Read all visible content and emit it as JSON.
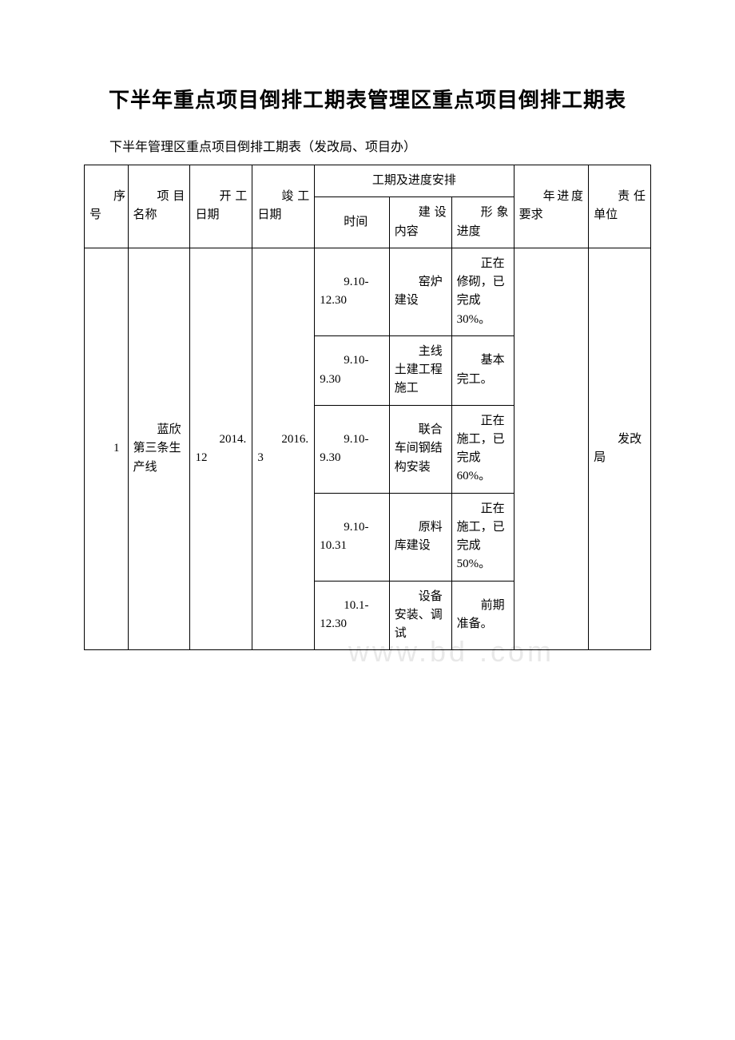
{
  "title": "下半年重点项目倒排工期表管理区重点项目倒排工期表",
  "subtitle": "下半年管理区重点项目倒排工期表（发改局、项目办）",
  "watermark": "www.bd .com",
  "table": {
    "header": {
      "seq": "序号",
      "name": "项目名称",
      "start": "开工日期",
      "end": "竣工日期",
      "progress_group": "工期及进度安排",
      "time": "时间",
      "content": "建设内容",
      "progress": "形象进度",
      "year": "年进度要求",
      "resp": "责任单位"
    },
    "columns_widths": {
      "seq": "7%",
      "name": "10%",
      "start": "10%",
      "end": "10%",
      "time": "12%",
      "content": "10%",
      "progress": "10%",
      "year": "12%",
      "resp": "10%"
    },
    "rows": [
      {
        "seq": "1",
        "name": "蓝欣第三条生产线",
        "start": "2014.12",
        "end": "2016.3",
        "year": "",
        "resp": "发改局",
        "tasks": [
          {
            "time": "9.10-12.30",
            "content": "窑炉建设",
            "progress": "正在修砌，已完成30%。"
          },
          {
            "time": "9.10-9.30",
            "content": "主线土建工程施工",
            "progress": "基本完工。"
          },
          {
            "time": "9.10-9.30",
            "content": "联合车间钢结构安装",
            "progress": "正在施工，已完成60%。"
          },
          {
            "time": "9.10-10.31",
            "content": "原料库建设",
            "progress": "正在施工，已完成50%。"
          },
          {
            "time": "10.1-12.30",
            "content": "设备安装、调试",
            "progress": "前期准备。"
          }
        ]
      }
    ]
  }
}
